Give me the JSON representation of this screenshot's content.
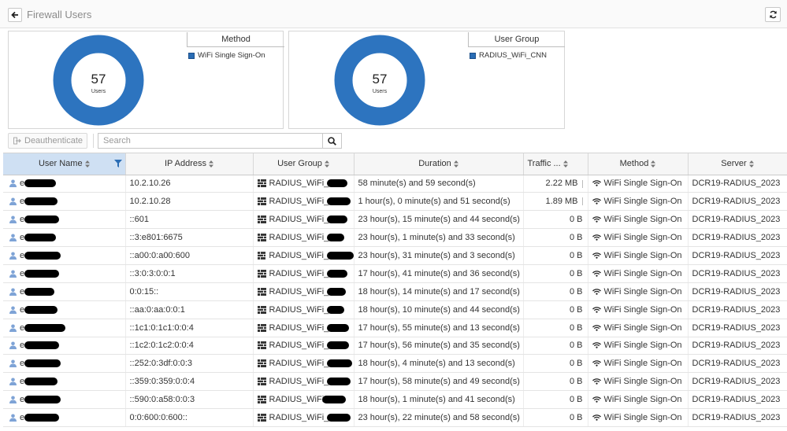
{
  "header": {
    "title": "Firewall Users"
  },
  "summary": {
    "method": {
      "total": "57",
      "total_label": "Users",
      "legend_title": "Method",
      "items": [
        {
          "label": "WiFi Single Sign-On",
          "color": "#2a6db5"
        }
      ]
    },
    "user_group": {
      "total": "57",
      "total_label": "Users",
      "legend_title": "User Group",
      "items": [
        {
          "label": "RADIUS_WiFi_CNN",
          "color": "#2a6db5"
        }
      ]
    }
  },
  "toolbar": {
    "deauth_label": "Deauthenticate",
    "search_placeholder": "Search"
  },
  "table": {
    "columns": [
      "User Name",
      "IP Address",
      "User Group",
      "Duration",
      "Traffic ...",
      "Method",
      "Server"
    ],
    "rows": [
      {
        "user": "e",
        "ip": "10.2.10.26",
        "group": "RADIUS_WiFi_",
        "duration": "58 minute(s) and 59 second(s)",
        "traffic": "2.22 MB",
        "method": "WiFi Single Sign-On",
        "server": "DCR19-RADIUS_2023"
      },
      {
        "user": "e",
        "ip": "10.2.10.28",
        "group": "RADIUS_WiFi_",
        "duration": "1 hour(s), 0 minute(s) and 51 second(s)",
        "traffic": "1.89 MB",
        "method": "WiFi Single Sign-On",
        "server": "DCR19-RADIUS_2023"
      },
      {
        "user": "e",
        "ip": "::601",
        "group": "RADIUS_WiFi_",
        "duration": "23 hour(s), 15 minute(s) and 44 second(s)",
        "traffic": "0 B",
        "method": "WiFi Single Sign-On",
        "server": "DCR19-RADIUS_2023"
      },
      {
        "user": "e",
        "ip": "::3:e801:6675",
        "group": "RADIUS_WiFi_",
        "duration": "23 hour(s), 1 minute(s) and 33 second(s)",
        "traffic": "0 B",
        "method": "WiFi Single Sign-On",
        "server": "DCR19-RADIUS_2023"
      },
      {
        "user": "e",
        "ip": "::a00:0:a00:600",
        "group": "RADIUS_WiFi_",
        "duration": "23 hour(s), 31 minute(s) and 3 second(s)",
        "traffic": "0 B",
        "method": "WiFi Single Sign-On",
        "server": "DCR19-RADIUS_2023"
      },
      {
        "user": "e",
        "ip": "::3:0:3:0:0:1",
        "group": "RADIUS_WiFi_",
        "duration": "17 hour(s), 41 minute(s) and 36 second(s)",
        "traffic": "0 B",
        "method": "WiFi Single Sign-On",
        "server": "DCR19-RADIUS_2023"
      },
      {
        "user": "e",
        "ip": "0:0:15::",
        "group": "RADIUS_WiFi_",
        "duration": "18 hour(s), 14 minute(s) and 17 second(s)",
        "traffic": "0 B",
        "method": "WiFi Single Sign-On",
        "server": "DCR19-RADIUS_2023"
      },
      {
        "user": "e",
        "ip": "::aa:0:aa:0:0:1",
        "group": "RADIUS_WiFi_",
        "duration": "18 hour(s), 10 minute(s) and 44 second(s)",
        "traffic": "0 B",
        "method": "WiFi Single Sign-On",
        "server": "DCR19-RADIUS_2023"
      },
      {
        "user": "e",
        "ip": "::1c1:0:1c1:0:0:4",
        "group": "RADIUS_WiFi_",
        "duration": "17 hour(s), 55 minute(s) and 13 second(s)",
        "traffic": "0 B",
        "method": "WiFi Single Sign-On",
        "server": "DCR19-RADIUS_2023"
      },
      {
        "user": "e",
        "ip": "::1c2:0:1c2:0:0:4",
        "group": "RADIUS_WiFi_",
        "duration": "17 hour(s), 56 minute(s) and 35 second(s)",
        "traffic": "0 B",
        "method": "WiFi Single Sign-On",
        "server": "DCR19-RADIUS_2023"
      },
      {
        "user": "e",
        "ip": "::252:0:3df:0:0:3",
        "group": "RADIUS_WiFi_",
        "duration": "18 hour(s), 4 minute(s) and 13 second(s)",
        "traffic": "0 B",
        "method": "WiFi Single Sign-On",
        "server": "DCR19-RADIUS_2023"
      },
      {
        "user": "e",
        "ip": "::359:0:359:0:0:4",
        "group": "RADIUS_WiFi_",
        "duration": "17 hour(s), 58 minute(s) and 49 second(s)",
        "traffic": "0 B",
        "method": "WiFi Single Sign-On",
        "server": "DCR19-RADIUS_2023"
      },
      {
        "user": "e",
        "ip": "::590:0:a58:0:0:3",
        "group": "RADIUS_WiFi",
        "duration": "18 hour(s), 1 minute(s) and 41 second(s)",
        "traffic": "0 B",
        "method": "WiFi Single Sign-On",
        "server": "DCR19-RADIUS_2023"
      },
      {
        "user": "e",
        "ip": "0:0:600:0:600::",
        "group": "RADIUS_WiFi_",
        "duration": "23 hour(s), 22 minute(s) and 58 second(s)",
        "traffic": "0 B",
        "method": "WiFi Single Sign-On",
        "server": "DCR19-RADIUS_2023"
      }
    ]
  },
  "colors": {
    "donut": "#2d74bf",
    "header_active": "#cfe0f3",
    "user_icon": "#7ea3d6"
  }
}
